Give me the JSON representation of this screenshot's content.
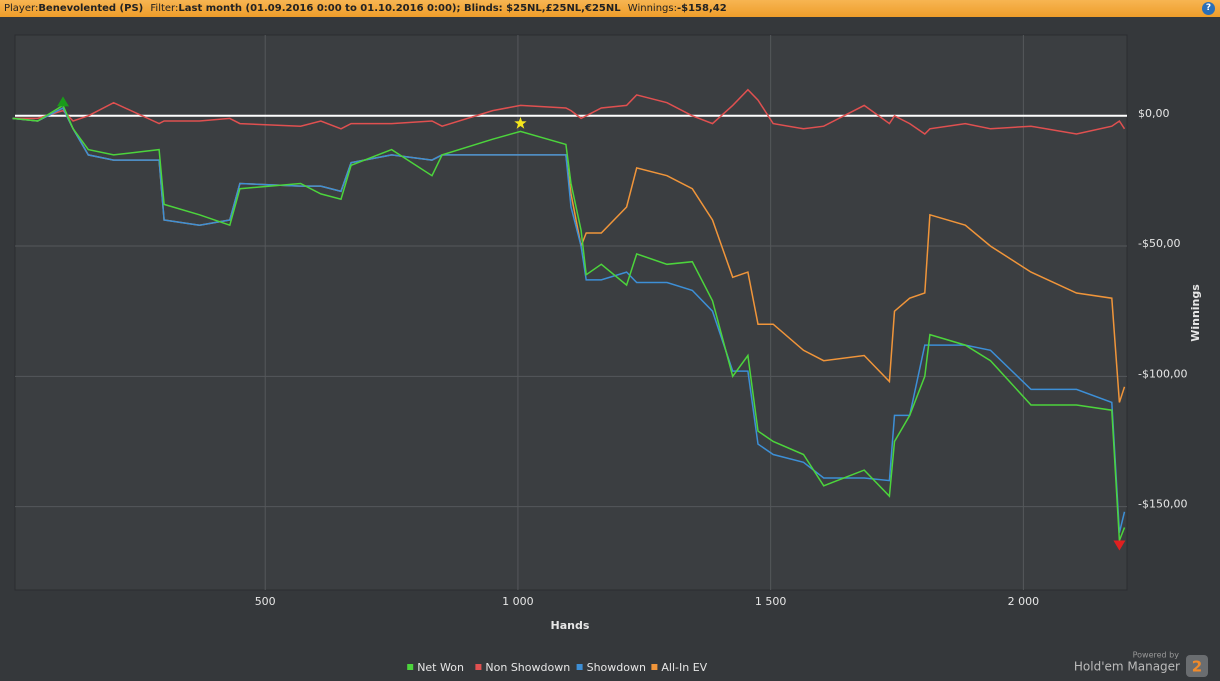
{
  "header": {
    "player_label": "Player:",
    "player": "Benevolented (PS)",
    "filter_label": "Filter:",
    "filter": "Last month (01.09.2016 0:00 to 01.10.2016 0:00); Blinds: $25NL,£25NL,€25NL",
    "winnings_label": "Winnings:",
    "winnings": "-$158,42"
  },
  "footer": {
    "powered_by": "Powered by",
    "brand": "Hold'em Manager",
    "version": "2"
  },
  "chart_data": {
    "type": "line",
    "x_label": "Hands",
    "y_label": "Winnings",
    "grid": true,
    "legend": "bottom",
    "xlim": [
      5,
      2205
    ],
    "ylim": [
      -182,
      31
    ],
    "xticks": [
      {
        "value": 500,
        "label": "500"
      },
      {
        "value": 1000,
        "label": "1 000"
      },
      {
        "value": 1500,
        "label": "1 500"
      },
      {
        "value": 2000,
        "label": "2 000"
      }
    ],
    "yticks": [
      {
        "value": 0,
        "label": "$0,00"
      },
      {
        "value": -50,
        "label": "-$50,00"
      },
      {
        "value": -100,
        "label": "-$100,00"
      },
      {
        "value": -150,
        "label": "-$150,00"
      }
    ],
    "x": [
      0,
      50,
      100,
      120,
      150,
      200,
      290,
      300,
      370,
      430,
      450,
      570,
      610,
      650,
      670,
      750,
      830,
      850,
      950,
      1005,
      1095,
      1105,
      1125,
      1135,
      1165,
      1215,
      1235,
      1295,
      1345,
      1385,
      1425,
      1455,
      1475,
      1505,
      1565,
      1605,
      1685,
      1735,
      1745,
      1775,
      1805,
      1815,
      1885,
      1935,
      2015,
      2105,
      2175,
      2190,
      2200
    ],
    "series": [
      {
        "name": "Net Won",
        "color": "#4cd43c",
        "values": [
          -1,
          -2,
          4,
          -5,
          -13,
          -15,
          -13,
          -34,
          -38,
          -42,
          -28,
          -26,
          -30,
          -32,
          -19,
          -13,
          -23,
          -15,
          -9,
          -6,
          -11,
          -26,
          -44,
          -61,
          -57,
          -65,
          -53,
          -57,
          -56,
          -71,
          -100,
          -92,
          -121,
          -125,
          -130,
          -142,
          -136,
          -146,
          -125,
          -115,
          -100,
          -84,
          -88,
          -94,
          -111,
          -111,
          -113,
          -163,
          -158
        ]
      },
      {
        "name": "Non Showdown",
        "color": "#e05050",
        "values": [
          -1,
          -1,
          2,
          -2,
          0,
          5,
          -3,
          -2,
          -2,
          -1,
          -3,
          -4,
          -2,
          -5,
          -3,
          -3,
          -2,
          -4,
          2,
          4,
          3,
          2,
          -1,
          0,
          3,
          4,
          8,
          5,
          0,
          -3,
          4,
          10,
          6,
          -3,
          -5,
          -4,
          4,
          -3,
          0,
          -3,
          -7,
          -5,
          -3,
          -5,
          -4,
          -7,
          -4,
          -2,
          -5
        ]
      },
      {
        "name": "Showdown",
        "color": "#3d8fd6",
        "values": [
          -1,
          -2,
          3,
          -5,
          -15,
          -17,
          -17,
          -40,
          -42,
          -40,
          -26,
          -27,
          -27,
          -29,
          -18,
          -15,
          -17,
          -15,
          -15,
          -15,
          -15,
          -35,
          -50,
          -63,
          -63,
          -60,
          -64,
          -64,
          -67,
          -75,
          -98,
          -98,
          -126,
          -130,
          -133,
          -139,
          -139,
          -140,
          -115,
          -115,
          -88,
          -88,
          -88,
          -90,
          -105,
          -105,
          -110,
          -160,
          -152
        ]
      },
      {
        "name": "All-In EV",
        "color": "#f0953a",
        "values": [
          -1,
          -2,
          3,
          -5,
          -15,
          -17,
          -17,
          -40,
          -42,
          -40,
          -26,
          -27,
          -27,
          -29,
          -18,
          -15,
          -17,
          -15,
          -15,
          -15,
          -15,
          -30,
          -50,
          -45,
          -45,
          -35,
          -20,
          -23,
          -28,
          -40,
          -62,
          -60,
          -80,
          -80,
          -90,
          -94,
          -92,
          -102,
          -75,
          -70,
          -68,
          -38,
          -42,
          -50,
          -60,
          -68,
          -70,
          -110,
          -104
        ]
      }
    ]
  }
}
